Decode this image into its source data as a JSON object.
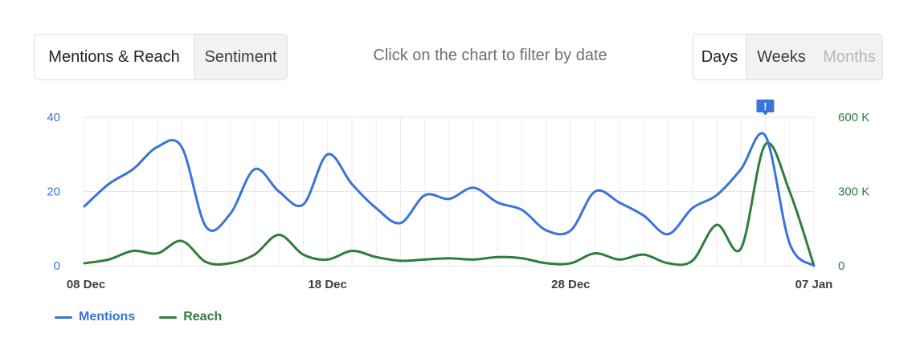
{
  "tabs": {
    "view": [
      {
        "label": "Mentions & Reach",
        "active": true
      },
      {
        "label": "Sentiment",
        "active": false
      }
    ],
    "period": [
      {
        "label": "Days",
        "active": true,
        "disabled": false
      },
      {
        "label": "Weeks",
        "active": false,
        "disabled": false
      },
      {
        "label": "Months",
        "active": false,
        "disabled": true
      }
    ]
  },
  "hint": "Click on the chart to filter by date",
  "chart_data": {
    "type": "line",
    "x_labels": [
      "08 Dec",
      "18 Dec",
      "28 Dec",
      "07 Jan"
    ],
    "x_label_days": [
      0,
      10,
      20,
      30
    ],
    "x_range": [
      0,
      30
    ],
    "y_left": {
      "ticks": [
        "0",
        "20",
        "40"
      ],
      "tick_values": [
        0,
        20,
        40
      ],
      "range": [
        0,
        40
      ]
    },
    "y_right": {
      "ticks": [
        "0",
        "300 K",
        "600 K"
      ],
      "tick_values": [
        0,
        300000,
        600000
      ],
      "range": [
        0,
        600000
      ]
    },
    "grid": true,
    "alert_marker_day": 28,
    "series": [
      {
        "name": "Mentions",
        "axis": "left",
        "color": "#3a74d6",
        "values": [
          16,
          22,
          26,
          32,
          32,
          10.5,
          14,
          26,
          20,
          16.5,
          30,
          22,
          15.5,
          11.5,
          19,
          18,
          21,
          17,
          15,
          9.5,
          9.5,
          20,
          17,
          13.5,
          8.5,
          15.5,
          19,
          26,
          35,
          6,
          0
        ]
      },
      {
        "name": "Reach",
        "axis": "right",
        "color": "#2e7d3e",
        "values": [
          10000,
          25000,
          60000,
          50000,
          100000,
          15000,
          10000,
          45000,
          125000,
          45000,
          25000,
          60000,
          35000,
          20000,
          25000,
          30000,
          25000,
          35000,
          30000,
          10000,
          10000,
          50000,
          25000,
          45000,
          10000,
          20000,
          165000,
          70000,
          490000,
          300000,
          0
        ]
      }
    ]
  }
}
